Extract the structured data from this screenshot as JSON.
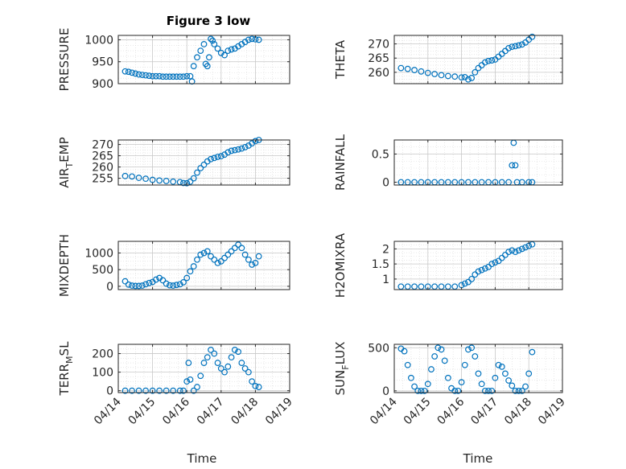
{
  "figure": {
    "title": "Figure 3 low",
    "xlabel": "Time",
    "series_color": "#0072BD"
  },
  "chart_data": [
    {
      "type": "scatter",
      "ylabel": "PRESSURE",
      "ylim": [
        900,
        1010
      ],
      "yticks": [
        900,
        950,
        1000
      ],
      "ytick_labels": [
        "900",
        "950",
        "1000"
      ],
      "x": [
        0.2,
        0.3,
        0.4,
        0.5,
        0.6,
        0.7,
        0.8,
        0.9,
        1.0,
        1.1,
        1.2,
        1.3,
        1.4,
        1.5,
        1.6,
        1.7,
        1.8,
        1.9,
        2.0,
        2.1,
        2.15,
        2.2,
        2.3,
        2.4,
        2.5,
        2.55,
        2.6,
        2.65,
        2.7,
        2.75,
        2.8,
        2.9,
        3.0,
        3.1,
        3.2,
        3.3,
        3.4,
        3.5,
        3.6,
        3.7,
        3.8,
        3.9,
        4.0,
        4.1
      ],
      "y": [
        928,
        927,
        925,
        923,
        921,
        920,
        919,
        918,
        917,
        917,
        917,
        916,
        916,
        916,
        916,
        916,
        916,
        916,
        917,
        917,
        905,
        940,
        960,
        975,
        990,
        945,
        940,
        960,
        1002,
        998,
        990,
        980,
        970,
        965,
        975,
        978,
        980,
        985,
        990,
        995,
        1000,
        1002,
        1001,
        1000
      ]
    },
    {
      "type": "scatter",
      "ylabel": "THETA",
      "ylim": [
        256,
        273
      ],
      "yticks": [
        260,
        265,
        270
      ],
      "ytick_labels": [
        "260",
        "265",
        "270"
      ],
      "x": [
        0.2,
        0.4,
        0.6,
        0.8,
        1.0,
        1.2,
        1.4,
        1.6,
        1.8,
        2.0,
        2.1,
        2.2,
        2.3,
        2.4,
        2.5,
        2.6,
        2.7,
        2.8,
        2.9,
        3.0,
        3.1,
        3.2,
        3.3,
        3.4,
        3.5,
        3.6,
        3.7,
        3.8,
        3.9,
        4.0,
        4.1
      ],
      "y": [
        261.5,
        261.2,
        260.8,
        260.3,
        259.8,
        259.4,
        259.0,
        258.7,
        258.5,
        258.2,
        258.3,
        257.5,
        258.0,
        260.0,
        261.5,
        262.5,
        263.5,
        264.0,
        264.2,
        264.5,
        265.5,
        266.5,
        267.5,
        268.5,
        269.0,
        269.2,
        269.5,
        269.8,
        270.5,
        271.5,
        272.5
      ]
    },
    {
      "type": "scatter",
      "ylabel": "AIR_TEMP",
      "ylim": [
        252,
        272
      ],
      "yticks": [
        255,
        260,
        265,
        270
      ],
      "ytick_labels": [
        "255",
        "260",
        "265",
        "270"
      ],
      "x": [
        0.2,
        0.4,
        0.6,
        0.8,
        1.0,
        1.2,
        1.4,
        1.6,
        1.8,
        1.9,
        2.0,
        2.1,
        2.2,
        2.3,
        2.4,
        2.5,
        2.6,
        2.7,
        2.8,
        2.9,
        3.0,
        3.1,
        3.2,
        3.3,
        3.4,
        3.5,
        3.6,
        3.7,
        3.8,
        3.9,
        4.0,
        4.1
      ],
      "y": [
        256.0,
        255.8,
        255.2,
        254.8,
        254.3,
        254.0,
        253.8,
        253.5,
        253.3,
        252.9,
        252.8,
        253.5,
        255.0,
        257.5,
        259.5,
        261.0,
        262.5,
        263.5,
        264.0,
        264.5,
        264.8,
        265.5,
        266.5,
        267.2,
        267.5,
        267.8,
        268.2,
        268.8,
        269.5,
        270.5,
        271.5,
        272.0
      ]
    },
    {
      "type": "scatter",
      "ylabel": "RAINFALL",
      "ylim": [
        -0.05,
        0.75
      ],
      "yticks": [
        0,
        0.5
      ],
      "ytick_labels": [
        "0",
        "0.5"
      ],
      "x": [
        0.2,
        0.4,
        0.6,
        0.8,
        1.0,
        1.2,
        1.4,
        1.6,
        1.8,
        2.0,
        2.2,
        2.4,
        2.6,
        2.8,
        3.0,
        3.2,
        3.4,
        3.5,
        3.55,
        3.6,
        3.65,
        3.8,
        4.0,
        4.1
      ],
      "y": [
        0,
        0,
        0,
        0,
        0,
        0,
        0,
        0,
        0,
        0,
        0,
        0,
        0,
        0,
        0,
        0,
        0,
        0.3,
        0.7,
        0.3,
        0,
        0,
        0,
        0
      ]
    },
    {
      "type": "scatter",
      "ylabel": "MIXDEPTH",
      "ylim": [
        -100,
        1350
      ],
      "yticks": [
        0,
        500,
        1000
      ],
      "ytick_labels": [
        "0",
        "500",
        "1000"
      ],
      "x": [
        0.2,
        0.3,
        0.4,
        0.5,
        0.6,
        0.7,
        0.8,
        0.9,
        1.0,
        1.1,
        1.2,
        1.3,
        1.4,
        1.5,
        1.6,
        1.7,
        1.8,
        1.9,
        2.0,
        2.1,
        2.2,
        2.3,
        2.4,
        2.5,
        2.6,
        2.7,
        2.8,
        2.9,
        3.0,
        3.1,
        3.2,
        3.3,
        3.4,
        3.5,
        3.6,
        3.7,
        3.8,
        3.9,
        4.0,
        4.1
      ],
      "y": [
        150,
        50,
        20,
        10,
        10,
        20,
        60,
        100,
        130,
        200,
        250,
        180,
        80,
        30,
        20,
        40,
        60,
        120,
        250,
        450,
        600,
        800,
        950,
        1000,
        1050,
        900,
        800,
        700,
        750,
        850,
        950,
        1050,
        1150,
        1250,
        1150,
        950,
        800,
        650,
        700,
        900
      ]
    },
    {
      "type": "scatter",
      "ylabel": "H2OMIXRA",
      "ylim": [
        0.65,
        2.25
      ],
      "yticks": [
        1,
        1.5,
        2
      ],
      "ytick_labels": [
        "1",
        "1.5",
        "2"
      ],
      "x": [
        0.2,
        0.4,
        0.6,
        0.8,
        1.0,
        1.2,
        1.4,
        1.6,
        1.8,
        2.0,
        2.1,
        2.2,
        2.3,
        2.4,
        2.5,
        2.6,
        2.7,
        2.8,
        2.9,
        3.0,
        3.1,
        3.2,
        3.3,
        3.4,
        3.5,
        3.6,
        3.7,
        3.8,
        3.9,
        4.0,
        4.1
      ],
      "y": [
        0.75,
        0.75,
        0.75,
        0.75,
        0.75,
        0.75,
        0.75,
        0.75,
        0.75,
        0.8,
        0.85,
        0.9,
        1.0,
        1.15,
        1.25,
        1.3,
        1.35,
        1.4,
        1.5,
        1.55,
        1.6,
        1.7,
        1.8,
        1.9,
        1.95,
        1.9,
        1.95,
        2.0,
        2.05,
        2.1,
        2.15
      ]
    },
    {
      "type": "scatter",
      "ylabel": "TERR_MSL",
      "ylim": [
        -10,
        250
      ],
      "yticks": [
        0,
        100,
        200
      ],
      "ytick_labels": [
        "0",
        "100",
        "200"
      ],
      "x": [
        0.2,
        0.4,
        0.6,
        0.8,
        1.0,
        1.2,
        1.4,
        1.6,
        1.8,
        1.9,
        2.0,
        2.05,
        2.1,
        2.2,
        2.3,
        2.4,
        2.5,
        2.6,
        2.7,
        2.8,
        2.9,
        3.0,
        3.1,
        3.2,
        3.3,
        3.4,
        3.5,
        3.6,
        3.7,
        3.8,
        3.9,
        4.0,
        4.1
      ],
      "y": [
        0,
        0,
        0,
        0,
        0,
        0,
        0,
        0,
        0,
        0,
        50,
        150,
        60,
        0,
        20,
        80,
        150,
        180,
        220,
        200,
        150,
        120,
        100,
        130,
        180,
        220,
        210,
        150,
        120,
        100,
        50,
        25,
        20
      ]
    },
    {
      "type": "scatter",
      "ylabel": "SUN_FLUX",
      "ylim": [
        -20,
        540
      ],
      "yticks": [
        0,
        500
      ],
      "ytick_labels": [
        "0",
        "500"
      ],
      "x": [
        0.2,
        0.3,
        0.4,
        0.5,
        0.6,
        0.7,
        0.8,
        0.9,
        1.0,
        1.1,
        1.2,
        1.3,
        1.4,
        1.5,
        1.6,
        1.7,
        1.8,
        1.9,
        2.0,
        2.1,
        2.2,
        2.3,
        2.4,
        2.5,
        2.6,
        2.7,
        2.8,
        2.9,
        3.0,
        3.1,
        3.2,
        3.3,
        3.4,
        3.5,
        3.6,
        3.7,
        3.8,
        3.9,
        4.0,
        4.1
      ],
      "y": [
        490,
        460,
        300,
        150,
        50,
        0,
        0,
        0,
        80,
        250,
        400,
        500,
        480,
        350,
        150,
        30,
        0,
        0,
        100,
        300,
        480,
        500,
        400,
        200,
        80,
        0,
        0,
        0,
        150,
        300,
        280,
        200,
        120,
        60,
        0,
        0,
        0,
        50,
        200,
        450
      ]
    }
  ],
  "xaxis": {
    "xlim": [
      0,
      5
    ],
    "ticks": [
      0,
      1,
      2,
      3,
      4,
      5
    ],
    "tick_labels": [
      "04/14",
      "04/15",
      "04/16",
      "04/17",
      "04/18",
      "04/19"
    ]
  }
}
